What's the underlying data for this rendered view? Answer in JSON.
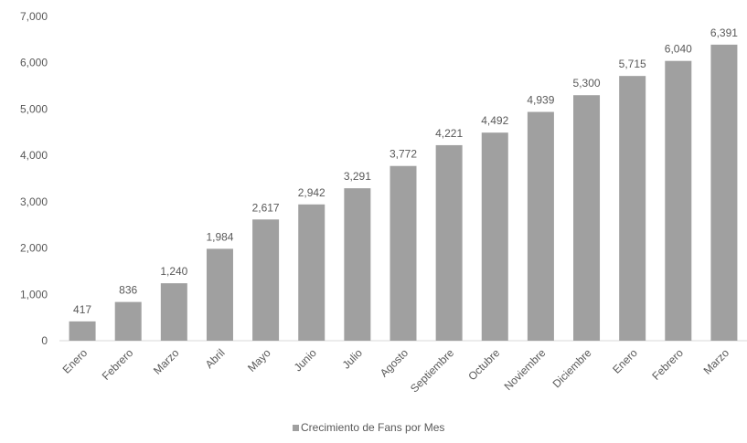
{
  "chart_data": {
    "type": "bar",
    "categories": [
      "Enero",
      "Febrero",
      "Marzo",
      "Abril",
      "Mayo",
      "Junio",
      "Julio",
      "Agosto",
      "Septiembre",
      "Octubre",
      "Noviembre",
      "Diciembre",
      "Enero",
      "Febrero",
      "Marzo"
    ],
    "series": [
      {
        "name": "Crecimiento de Fans por Mes",
        "values": [
          417,
          836,
          1240,
          1984,
          2617,
          2942,
          3291,
          3772,
          4221,
          4492,
          4939,
          5300,
          5715,
          6040,
          6391
        ],
        "color": "#a0a0a0"
      }
    ],
    "ylim": [
      0,
      7000
    ],
    "yticks": [
      0,
      1000,
      2000,
      3000,
      4000,
      5000,
      6000,
      7000
    ],
    "ytick_labels": [
      "0",
      "1,000",
      "2,000",
      "3,000",
      "4,000",
      "5,000",
      "6,000",
      "7,000"
    ],
    "data_labels": [
      "417",
      "836",
      "1,240",
      "1,984",
      "2,617",
      "2,942",
      "3,291",
      "3,772",
      "4,221",
      "4,492",
      "4,939",
      "5,300",
      "5,715",
      "6,040",
      "6,391"
    ],
    "grid": false,
    "legend": {
      "position": "bottom",
      "entries": [
        "Crecimiento de Fans por Mes"
      ]
    },
    "title": "",
    "xlabel": "",
    "ylabel": ""
  }
}
